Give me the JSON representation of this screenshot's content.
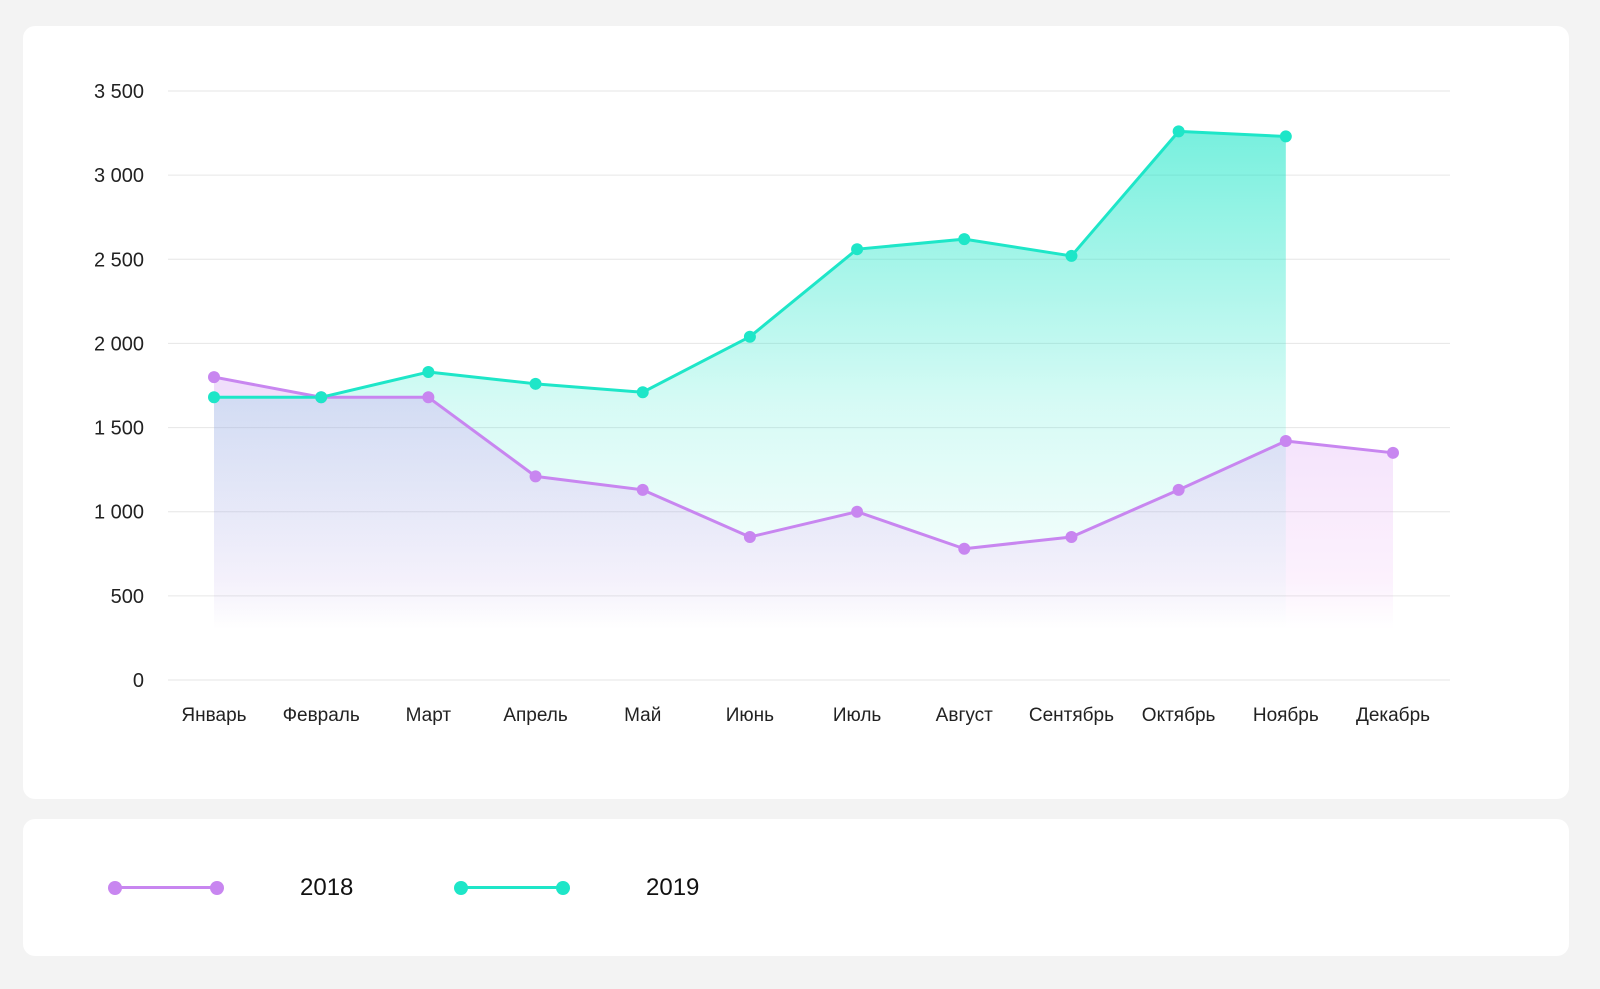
{
  "chart_data": {
    "type": "area",
    "categories": [
      "Январь",
      "Февраль",
      "Март",
      "Апрель",
      "Май",
      "Июнь",
      "Июль",
      "Август",
      "Сентябрь",
      "Октябрь",
      "Ноябрь",
      "Декабрь"
    ],
    "yticks": [
      "0",
      "500",
      "1 000",
      "1 500",
      "2 000",
      "2 500",
      "3 000",
      "3 500"
    ],
    "ylim": [
      0,
      3500
    ],
    "grid": true,
    "legend_position": "bottom",
    "series": [
      {
        "name": "2018",
        "color": "#c886f0",
        "values": [
          1800,
          1680,
          1680,
          1210,
          1130,
          850,
          1000,
          780,
          850,
          1130,
          1420,
          1350
        ]
      },
      {
        "name": "2019",
        "color": "#1ee6c8",
        "values": [
          1680,
          1680,
          1830,
          1760,
          1710,
          2040,
          2560,
          2620,
          2520,
          3260,
          3230,
          null
        ]
      }
    ]
  }
}
